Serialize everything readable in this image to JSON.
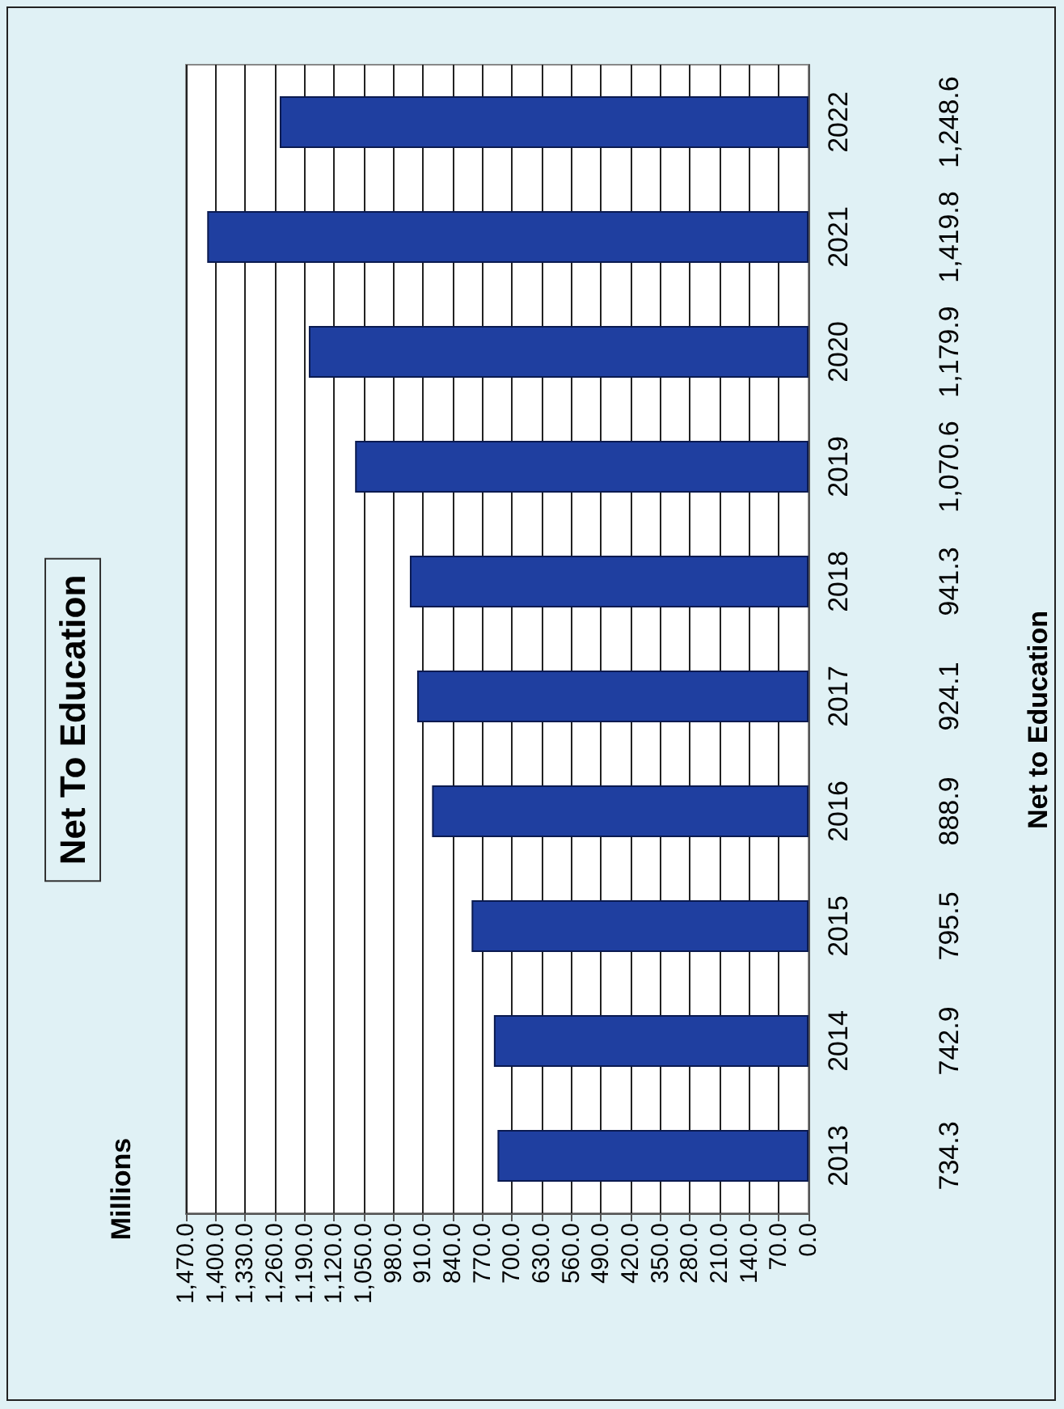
{
  "chart_data": {
    "type": "bar",
    "orientation": "horizontal",
    "title": "Net To Education",
    "annotations": [
      "Millions",
      "Net to Education"
    ],
    "categories": [
      "2022",
      "2021",
      "2020",
      "2019",
      "2018",
      "2017",
      "2016",
      "2015",
      "2014",
      "2013"
    ],
    "values": [
      1248.6,
      1419.8,
      1179.9,
      1070.6,
      941.3,
      924.1,
      888.9,
      795.5,
      742.9,
      734.3
    ],
    "value_labels": [
      "1,248.6",
      "1,419.8",
      "1,179.9",
      "1,070.6",
      "941.3",
      "924.1",
      "888.9",
      "795.5",
      "742.9",
      "734.3"
    ],
    "color": "#1f3fa0",
    "grid": "x",
    "xlim": [
      1470,
      0
    ],
    "xticks": [
      {
        "value": 1470,
        "label": "1,470.0"
      },
      {
        "value": 1400,
        "label": "1,400.0"
      },
      {
        "value": 1330,
        "label": "1,330.0"
      },
      {
        "value": 1260,
        "label": "1,260.0"
      },
      {
        "value": 1190,
        "label": "1,190.0"
      },
      {
        "value": 1120,
        "label": "1,120.0"
      },
      {
        "value": 1050,
        "label": "1,050.0"
      },
      {
        "value": 980,
        "label": "980.0"
      },
      {
        "value": 910,
        "label": "910.0"
      },
      {
        "value": 840,
        "label": "840.0"
      },
      {
        "value": 770,
        "label": "770.0"
      },
      {
        "value": 700,
        "label": "700.0"
      },
      {
        "value": 630,
        "label": "630.0"
      },
      {
        "value": 560,
        "label": "560.0"
      },
      {
        "value": 490,
        "label": "490.0"
      },
      {
        "value": 420,
        "label": "420.0"
      },
      {
        "value": 350,
        "label": "350.0"
      },
      {
        "value": 280,
        "label": "280.0"
      },
      {
        "value": 210,
        "label": "210.0"
      },
      {
        "value": 140,
        "label": "140.0"
      },
      {
        "value": 70,
        "label": "70.0"
      },
      {
        "value": 0,
        "label": "0.0"
      }
    ]
  }
}
